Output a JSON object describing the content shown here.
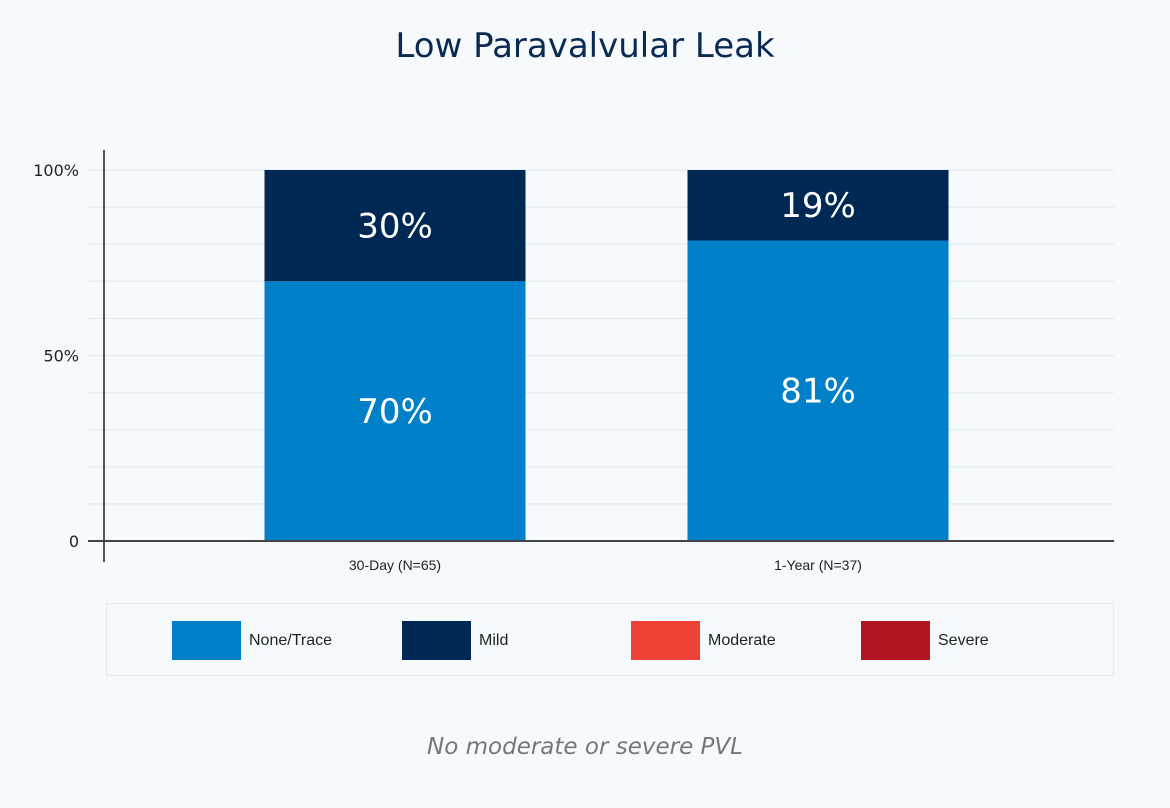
{
  "chart_data": {
    "type": "bar",
    "stacked": true,
    "title": "Low Paravalvular Leak",
    "categories": [
      "30-Day (N=65)",
      "1-Year (N=37)"
    ],
    "series": [
      {
        "name": "None/Trace",
        "color": "#0080c8",
        "values": [
          70,
          81
        ],
        "labels": [
          "70%",
          "81%"
        ]
      },
      {
        "name": "Mild",
        "color": "#002855",
        "values": [
          30,
          19
        ],
        "labels": [
          "30%",
          "19%"
        ]
      },
      {
        "name": "Moderate",
        "color": "#ef4135",
        "values": [
          0,
          0
        ]
      },
      {
        "name": "Severe",
        "color": "#b01520",
        "values": [
          0,
          0
        ]
      }
    ],
    "ylim": [
      0,
      100
    ],
    "yticks": [
      {
        "v": 0,
        "label": "0"
      },
      {
        "v": 50,
        "label": "50%"
      },
      {
        "v": 100,
        "label": "100%"
      }
    ],
    "grid": true,
    "legend_position": "bottom",
    "annotation": "No moderate or severe PVL"
  }
}
